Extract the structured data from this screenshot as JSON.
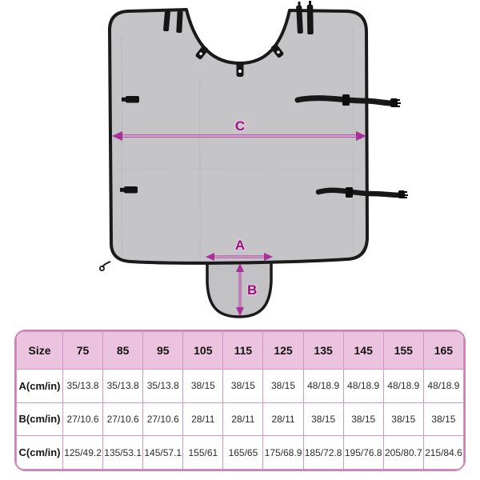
{
  "diagram": {
    "labels": {
      "a": "A",
      "b": "B",
      "c": "C"
    },
    "colors": {
      "fabric": "#c5c5c7",
      "trim": "#1a1a1a",
      "dimension_accent": "#a93099",
      "dimension_label": "#8c1d79"
    }
  },
  "table": {
    "header": [
      "Size",
      "75",
      "85",
      "95",
      "105",
      "115",
      "125",
      "135",
      "145",
      "155",
      "165"
    ],
    "rows": [
      {
        "label": "A(cm/in)",
        "values": [
          "35/13.8",
          "35/13.8",
          "35/13.8",
          "38/15",
          "38/15",
          "38/15",
          "48/18.9",
          "48/18.9",
          "48/18.9",
          "48/18.9"
        ]
      },
      {
        "label": "B(cm/in)",
        "values": [
          "27/10.6",
          "27/10.6",
          "27/10.6",
          "28/11",
          "28/11",
          "28/11",
          "38/15",
          "38/15",
          "38/15",
          "38/15"
        ]
      },
      {
        "label": "C(cm/in)",
        "values": [
          "125/49.2",
          "135/53.1",
          "145/57.1",
          "155/61",
          "165/65",
          "175/68.9",
          "185/72.8",
          "195/76.8",
          "205/80.7",
          "215/84.6"
        ]
      }
    ],
    "colors": {
      "header_bg": "#ebc3de",
      "border": "#c783b4",
      "cell_bg": "#ffffff"
    }
  }
}
